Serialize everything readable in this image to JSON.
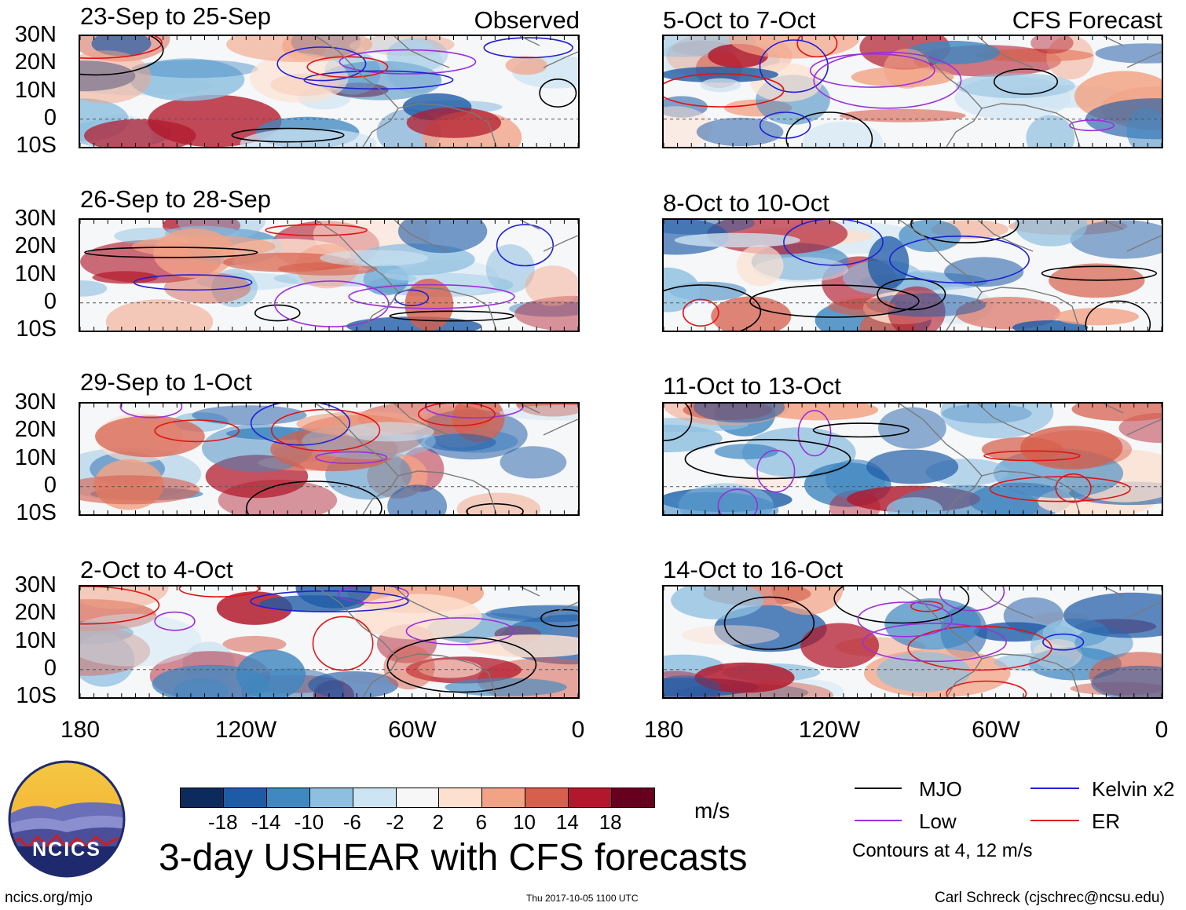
{
  "header": {
    "observed_label": "Observed",
    "forecast_label": "CFS Forecast"
  },
  "panels": {
    "observed": [
      {
        "title": "23-Sep to 25-Sep"
      },
      {
        "title": "26-Sep to 28-Sep"
      },
      {
        "title": "29-Sep to 1-Oct"
      },
      {
        "title": "2-Oct to 4-Oct"
      }
    ],
    "forecast": [
      {
        "title": "5-Oct to 7-Oct"
      },
      {
        "title": "8-Oct to 10-Oct"
      },
      {
        "title": "11-Oct to 13-Oct"
      },
      {
        "title": "14-Oct to 16-Oct"
      }
    ]
  },
  "axes": {
    "lat_labels": [
      "30N",
      "20N",
      "10N",
      "0",
      "10S"
    ],
    "lon_labels": [
      "180",
      "120W",
      "60W",
      "0"
    ]
  },
  "colorbar": {
    "colors": [
      "#0d2a5c",
      "#1e5ba6",
      "#3f88c1",
      "#8ebfe0",
      "#cde4f2",
      "#f7f7f7",
      "#fde0cf",
      "#f2a386",
      "#d6604d",
      "#b2182b",
      "#67001f"
    ],
    "labels": [
      "-18",
      "-14",
      "-10",
      "-6",
      "-2",
      "2",
      "6",
      "10",
      "14",
      "18"
    ],
    "units": "m/s"
  },
  "legend": {
    "items": [
      {
        "label": "MJO",
        "color": "#000000"
      },
      {
        "label": "Kelvin x2",
        "color": "#1f1fd6"
      },
      {
        "label": "Low",
        "color": "#9b30d9"
      },
      {
        "label": "ER",
        "color": "#e01414"
      }
    ],
    "note": "Contours at 4, 12 m/s"
  },
  "logo": {
    "text": "NCICS"
  },
  "title": "3-day USHEAR with CFS forecasts",
  "footer": {
    "url": "ncics.org/mjo",
    "timestamp": "Thu 2017-10-05 1100 UTC",
    "credit": "Carl Schreck (cjschrec@ncsu.edu)"
  }
}
